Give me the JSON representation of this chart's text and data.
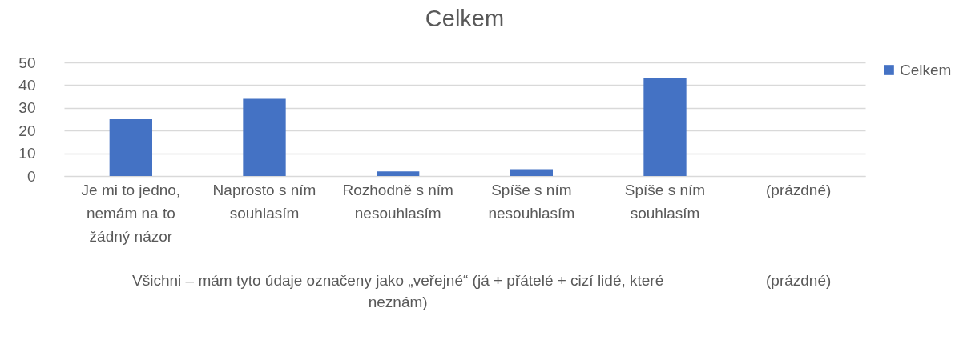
{
  "chart_data": {
    "type": "bar",
    "title": "Celkem",
    "categories": [
      "Je mi to jedno, nemám na to žádný názor",
      "Naprosto s ním souhlasím",
      "Rozhodně s ním nesouhlasím",
      "Spíše s ním nesouhlasím",
      "Spíše s ním souhlasím",
      "(prázdné)"
    ],
    "series": [
      {
        "name": "Celkem",
        "color": "#4472c4",
        "values": [
          25,
          34,
          2,
          3,
          43,
          null
        ]
      }
    ],
    "ylim": [
      0,
      50
    ],
    "yticks": [
      0,
      10,
      20,
      30,
      40,
      50
    ],
    "grid": "y",
    "legend": "right",
    "annotations": [
      "Všichni – mám tyto údaje označeny jako „veřejné“ (já + přátelé + cizí lidé, které neznám)",
      "(prázdné)"
    ]
  }
}
